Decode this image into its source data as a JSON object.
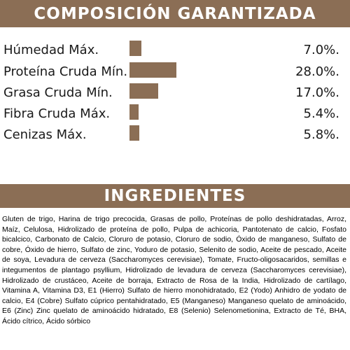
{
  "composicion": {
    "title": "COMPOSICIÓN GARANTIZADA",
    "bar_color": "#8b6e55",
    "rows": [
      {
        "label": "Húmedad Máx.",
        "value": "7.0%.",
        "percent": 7.0
      },
      {
        "label": "Proteína Cruda Mín.",
        "value": "28.0%.",
        "percent": 28.0
      },
      {
        "label": "Grasa Cruda Mín.",
        "value": "17.0%.",
        "percent": 17.0
      },
      {
        "label": "Fibra Cruda Máx.",
        "value": "5.4%.",
        "percent": 5.4
      },
      {
        "label": "Cenizas Máx.",
        "value": "5.8%.",
        "percent": 5.8
      }
    ]
  },
  "ingredientes": {
    "title": "INGREDIENTES",
    "text": "Gluten de trigo, Harina de trigo precocida, Grasas  de pollo, Proteínas de pollo deshidratadas, Arroz, Maíz, Celulosa, Hidrolizado de proteína de pollo, Pulpa de achicoria, Pantotenato de calcio, Fosfato bicalcico, Carbonato de Calcio, Cloruro de potasio, Cloruro de sodio, Óxido de manganeso, Sulfato de cobre, Óxido de hierro, Sulfato de zinc, Yoduro de potasio, Selenito de sodio, Aceite de pescado, Aceite de soya, Levadura de cerveza (Saccharomyces cerevisiae), Tomate, Fructo-oligosacaridos, semillas e integumentos de plantago psyllium, Hidrolizado de levadura de cerveza (Saccharomyces cerevisiae), Hidrolizado de crustáceo, Aceite de borraja, Extracto de Rosa de la India, Hidrolizado de cartílago, Vitamina A, Vitamina D3, E1 (Hierro) Sulfato de hierro monohidratado, E2 (Yodo) Anhidro de yodato de calcio, E4 (Cobre) Sulfato cúprico pentahidratado, E5 (Manganeso) Manganeso quelato de aminoácido, E6 (Zinc) Zinc quelato de aminoácido hidratado, E8 (Selenio) Selenometionina, Extracto de Té, BHA, Ácido cítrico, Ácido sórbico"
  }
}
